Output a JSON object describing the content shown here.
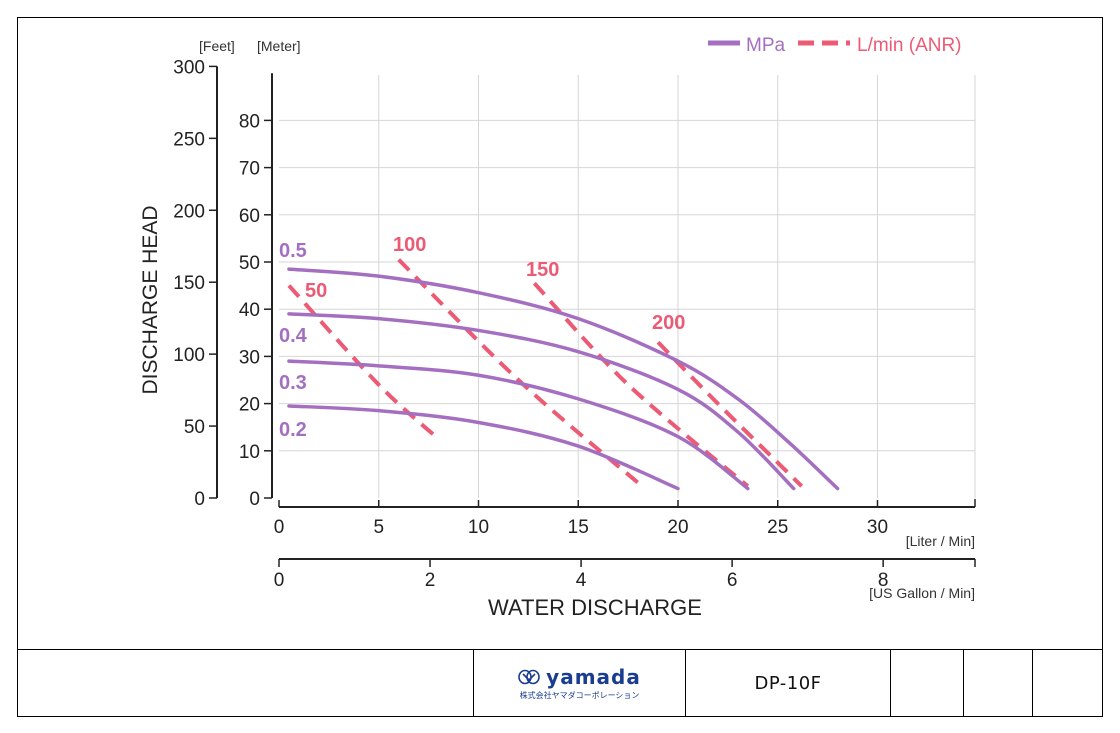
{
  "chart_data": {
    "type": "line",
    "title": "",
    "xlabel": "WATER DISCHARGE",
    "ylabel": "DISCHARGE HEAD",
    "x_unit_primary": "[Liter / Min]",
    "x_unit_secondary": "[US Gallon / Min]",
    "y_unit_feet": "[Feet]",
    "y_unit_meter": "[Meter]",
    "xlim": [
      0,
      35
    ],
    "ylim": [
      0,
      90
    ],
    "x_ticks": [
      0,
      5,
      10,
      15,
      20,
      25,
      30
    ],
    "x_ticks_gallon": [
      0,
      2,
      4,
      6,
      8
    ],
    "y_ticks_meter": [
      0,
      10,
      20,
      30,
      40,
      50,
      60,
      70,
      80
    ],
    "y_ticks_feet": [
      0,
      50,
      100,
      150,
      200,
      250,
      300
    ],
    "grid": true,
    "legend_position": "top-right",
    "legend": [
      {
        "label": "MPa",
        "style": "solid",
        "color": "#a46fc0"
      },
      {
        "label": "L/min (ANR)",
        "style": "dashed",
        "color": "#ec5a74"
      }
    ],
    "pressure_series": [
      {
        "name": "0.5",
        "color": "#a46fc0",
        "points": [
          [
            0.5,
            48.5
          ],
          [
            5,
            47
          ],
          [
            10,
            43.5
          ],
          [
            15,
            38
          ],
          [
            20,
            29
          ],
          [
            23,
            21
          ],
          [
            25.5,
            12
          ],
          [
            28,
            2
          ]
        ]
      },
      {
        "name": "0.4",
        "color": "#a46fc0",
        "points": [
          [
            0.5,
            39
          ],
          [
            5,
            38
          ],
          [
            10,
            35.5
          ],
          [
            15,
            31
          ],
          [
            20,
            23
          ],
          [
            23,
            14
          ],
          [
            25.8,
            2
          ]
        ]
      },
      {
        "name": "0.3",
        "color": "#a46fc0",
        "points": [
          [
            0.5,
            29
          ],
          [
            5,
            28
          ],
          [
            10,
            26
          ],
          [
            15,
            21
          ],
          [
            20,
            13
          ],
          [
            23.5,
            2
          ]
        ]
      },
      {
        "name": "0.2",
        "color": "#a46fc0",
        "points": [
          [
            0.5,
            19.5
          ],
          [
            5,
            18.5
          ],
          [
            10,
            16
          ],
          [
            15,
            11
          ],
          [
            20,
            2
          ]
        ]
      }
    ],
    "air_series": [
      {
        "name": "100",
        "color": "#ec5a74",
        "points": [
          [
            6,
            50.5
          ],
          [
            12,
            25
          ],
          [
            18.2,
            2.5
          ]
        ]
      },
      {
        "name": "50",
        "color": "#ec5a74",
        "points": [
          [
            0.5,
            45
          ],
          [
            5,
            24
          ],
          [
            8,
            12.5
          ]
        ]
      },
      {
        "name": "150",
        "color": "#ec5a74",
        "points": [
          [
            12.8,
            45.5
          ],
          [
            17.5,
            24
          ],
          [
            23.5,
            2.5
          ]
        ]
      },
      {
        "name": "200",
        "color": "#ec5a74",
        "points": [
          [
            19,
            33
          ],
          [
            22,
            20
          ],
          [
            26.2,
            2.5
          ]
        ]
      }
    ],
    "pressure_label_values": [
      0.5,
      0.4,
      0.3,
      0.2
    ],
    "air_label_values": [
      100,
      50,
      150,
      200
    ]
  },
  "labels": {
    "pressure": [
      "0.5",
      "0.4",
      "0.3",
      "0.2"
    ],
    "air": [
      "50",
      "100",
      "150",
      "200"
    ]
  },
  "titleblock": {
    "brand": "yamada",
    "brand_sub": "株式会社ヤマダコーポレーション",
    "model": "DP-10F"
  }
}
